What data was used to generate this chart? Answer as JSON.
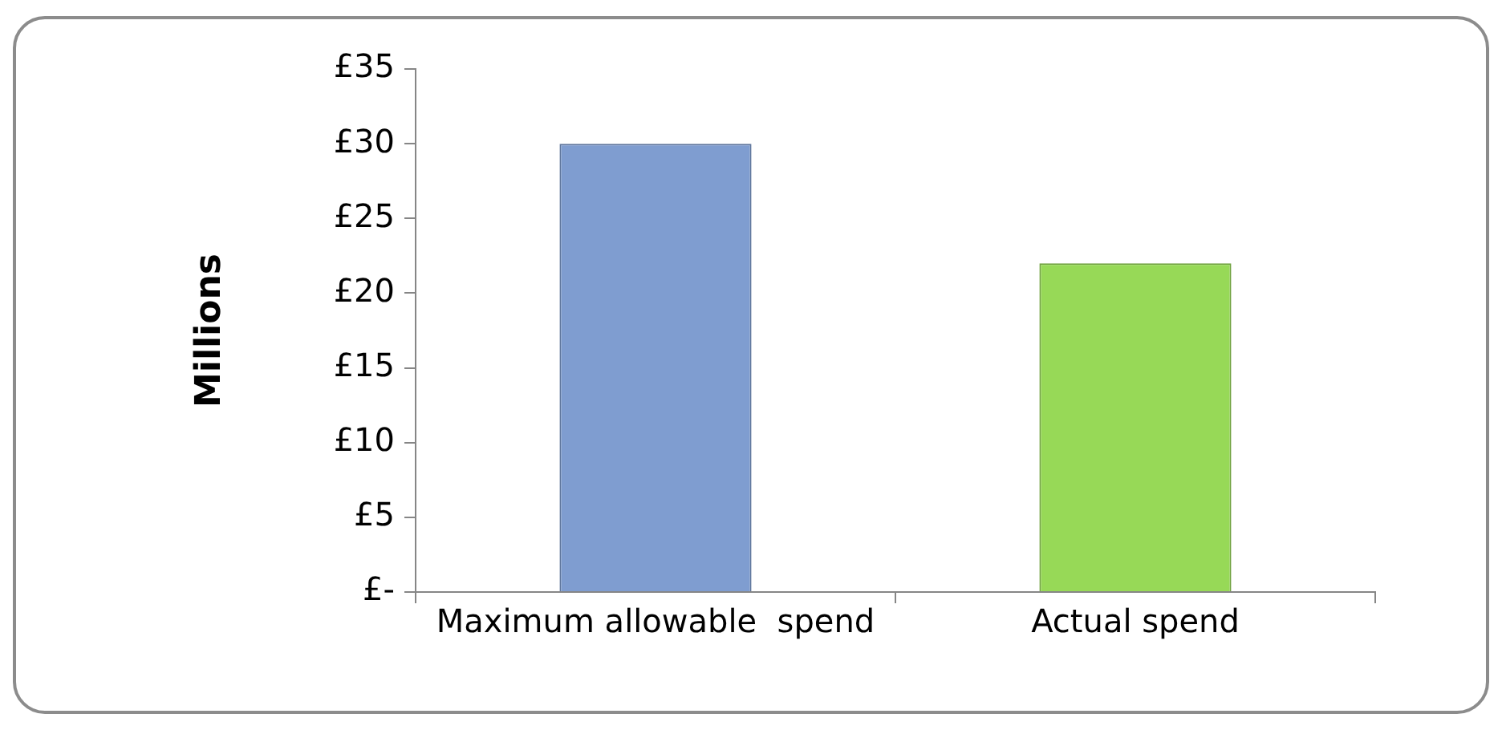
{
  "chart_data": {
    "type": "bar",
    "ylabel": "Millions",
    "categories": [
      "Maximum allowable  spend",
      "Actual spend"
    ],
    "values": [
      30,
      22
    ],
    "colors": [
      "#7f9dd0",
      "#97d957"
    ],
    "ylim": [
      0,
      35
    ],
    "yticks": [
      {
        "value": 0,
        "label": "£-"
      },
      {
        "value": 5,
        "label": "£5"
      },
      {
        "value": 10,
        "label": "£10"
      },
      {
        "value": 15,
        "label": "£15"
      },
      {
        "value": 20,
        "label": "£20"
      },
      {
        "value": 25,
        "label": "£25"
      },
      {
        "value": 30,
        "label": "£30"
      },
      {
        "value": 35,
        "label": "£35"
      }
    ],
    "grid": false,
    "legend": false
  }
}
